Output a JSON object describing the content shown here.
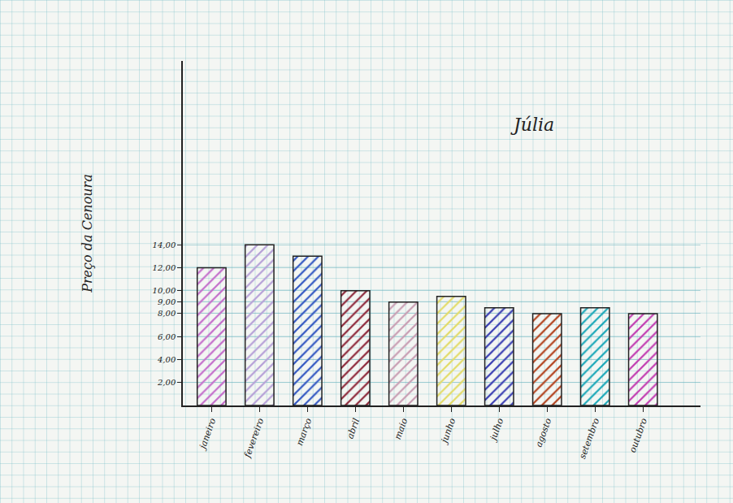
{
  "chart_data": {
    "type": "bar",
    "y_label": "Preço da Cenoura",
    "annotations": [
      "Júlia"
    ],
    "categories": [
      "janeiro",
      "fevereiro",
      "março",
      "abril",
      "maio",
      "junho",
      "julho",
      "agosto",
      "setembro",
      "outubro"
    ],
    "values": [
      12,
      14,
      13,
      10,
      9,
      9.5,
      8.5,
      8,
      8.5,
      8
    ],
    "colors": [
      "#c46fcb",
      "#b7a2d8",
      "#3559c2",
      "#8e2a3c",
      "#c99fb4",
      "#e3dc6a",
      "#3b3fb2",
      "#b2431f",
      "#1fa9b9",
      "#c240b2"
    ],
    "ylim": [
      0,
      30
    ],
    "yticks": [
      {
        "value": 2,
        "label": "2,00"
      },
      {
        "value": 4,
        "label": "4,00"
      },
      {
        "value": 6,
        "label": "6,00"
      },
      {
        "value": 8,
        "label": "8,00"
      },
      {
        "value": 9,
        "label": "9,00"
      },
      {
        "value": 10,
        "label": "10,00"
      },
      {
        "value": 12,
        "label": "12,00"
      },
      {
        "value": 14,
        "label": "14,00"
      }
    ],
    "grid": true
  }
}
